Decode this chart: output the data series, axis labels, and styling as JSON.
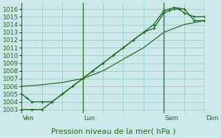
{
  "xlabel": "Pression niveau de la mer( hPa )",
  "bg_color": "#cce8e8",
  "grid_color": "#99cccc",
  "line_color": "#1a6e1a",
  "ylim": [
    1002.5,
    1016.8
  ],
  "yticks": [
    1003,
    1004,
    1005,
    1006,
    1007,
    1008,
    1009,
    1010,
    1011,
    1012,
    1013,
    1014,
    1015,
    1016
  ],
  "xlim": [
    0,
    9
  ],
  "xgrid_ticks": [
    0,
    1,
    2,
    3,
    4,
    5,
    6,
    7,
    8,
    9
  ],
  "day_lines": [
    0,
    3,
    7,
    9
  ],
  "day_labels": [
    "Ven",
    "Lun",
    "Sam",
    "Dim"
  ],
  "series1_x": [
    0,
    0.25,
    0.5,
    1,
    1.5,
    2,
    2.5,
    3,
    3.5,
    4,
    4.5,
    5,
    5.5,
    6,
    6.5,
    7,
    7.25,
    7.5,
    7.75,
    8,
    8.5,
    9
  ],
  "series1_y": [
    1005,
    1004.5,
    1004,
    1004,
    1004,
    1005,
    1006,
    1007,
    1008,
    1009,
    1010,
    1011,
    1012,
    1013,
    1013.5,
    1015.5,
    1015.8,
    1016,
    1016,
    1015.5,
    1015,
    1015
  ],
  "series2_x": [
    0,
    0.5,
    1,
    1.5,
    2,
    2.5,
    3,
    3.5,
    4,
    4.5,
    5,
    5.5,
    6,
    6.5,
    7,
    7.5,
    8,
    8.5,
    9
  ],
  "series2_y": [
    1003,
    1003,
    1003,
    1004,
    1005,
    1006,
    1007,
    1008,
    1009,
    1010,
    1011,
    1012,
    1013,
    1014,
    1015.8,
    1016.2,
    1016,
    1014.5,
    1014.5
  ],
  "series3_x": [
    0,
    1,
    2,
    3,
    4,
    5,
    6,
    7,
    8,
    9
  ],
  "series3_y": [
    1006,
    1006.2,
    1006.5,
    1007,
    1008,
    1009.5,
    1011,
    1013,
    1014,
    1014.5
  ],
  "xlabel_fontsize": 8,
  "tick_fontsize": 6.5
}
